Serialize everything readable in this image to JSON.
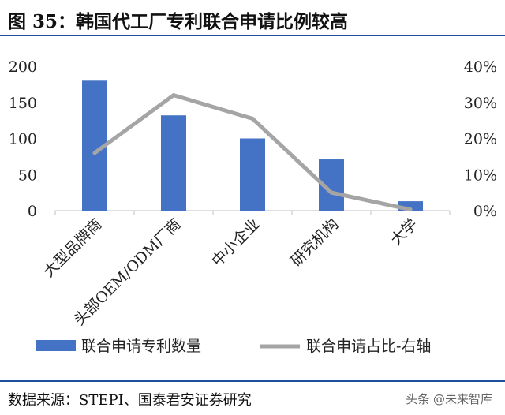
{
  "figure_title": "图 35：韩国代工厂专利联合申请比例较高",
  "source_text": "数据来源：STEPI、国泰君安证券研究",
  "watermark": "头条 @未来智库",
  "chart_data": {
    "type": "bar",
    "categories": [
      "大型品牌商",
      "头部OEM/ODM厂商",
      "中小企业",
      "研究机构",
      "大学"
    ],
    "series": [
      {
        "name": "联合申请专利数量",
        "type": "bar",
        "axis": "left",
        "color": "#4472c4",
        "values": [
          180,
          132,
          100,
          71,
          13
        ]
      },
      {
        "name": "联合申请占比-右轴",
        "type": "line",
        "axis": "right",
        "color": "#a5a5a5",
        "values": [
          0.16,
          0.32,
          0.255,
          0.05,
          0.003
        ]
      }
    ],
    "y_left": {
      "min": 0,
      "max": 200,
      "ticks": [
        0,
        50,
        100,
        150,
        200
      ],
      "tick_labels": [
        "0",
        "50",
        "100",
        "150",
        "200"
      ]
    },
    "y_right": {
      "min": 0,
      "max": 0.4,
      "ticks": [
        0,
        0.1,
        0.2,
        0.3,
        0.4
      ],
      "tick_labels": [
        "0%",
        "10%",
        "20%",
        "30%",
        "40%"
      ]
    },
    "grid": false,
    "legend_position": "bottom"
  }
}
